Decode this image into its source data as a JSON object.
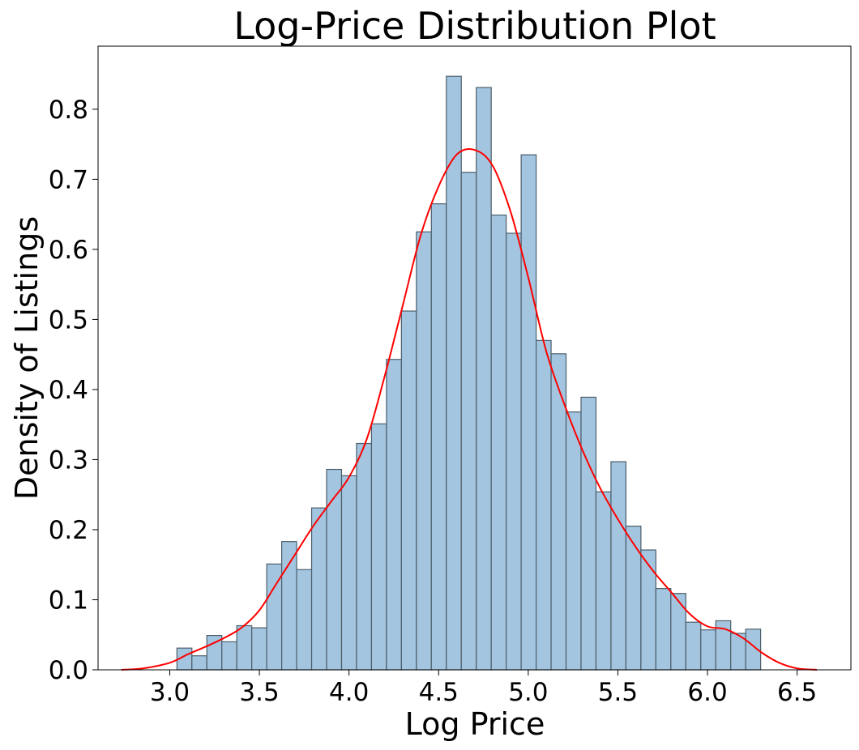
{
  "chart_data": {
    "type": "bar",
    "title": "Log-Price Distribution Plot",
    "xlabel": "Log Price",
    "ylabel": "Density of Listings",
    "xlim": [
      2.6,
      6.8
    ],
    "ylim": [
      0.0,
      0.89
    ],
    "xticks": [
      "3.0",
      "3.5",
      "4.0",
      "4.5",
      "5.0",
      "5.5",
      "6.0",
      "6.5"
    ],
    "yticks": [
      "0.0",
      "0.1",
      "0.2",
      "0.3",
      "0.4",
      "0.5",
      "0.6",
      "0.7",
      "0.8"
    ],
    "grid": false,
    "histogram": {
      "bin_start": 3.04,
      "bin_width": 0.0835,
      "values": [
        0.031,
        0.02,
        0.049,
        0.04,
        0.063,
        0.06,
        0.151,
        0.183,
        0.143,
        0.231,
        0.286,
        0.277,
        0.323,
        0.351,
        0.443,
        0.512,
        0.625,
        0.665,
        0.847,
        0.71,
        0.831,
        0.649,
        0.623,
        0.735,
        0.47,
        0.451,
        0.368,
        0.389,
        0.254,
        0.297,
        0.205,
        0.171,
        0.116,
        0.109,
        0.068,
        0.057,
        0.07,
        0.052,
        0.058
      ],
      "fill_color": "#a3c5df",
      "edge_color": "#4d5e6b"
    },
    "kde": {
      "color": "#ff0000",
      "x": [
        2.73,
        2.85,
        3.0,
        3.1,
        3.2,
        3.3,
        3.4,
        3.5,
        3.6,
        3.7,
        3.8,
        3.9,
        4.0,
        4.1,
        4.2,
        4.3,
        4.4,
        4.5,
        4.6,
        4.7,
        4.8,
        4.9,
        5.0,
        5.1,
        5.2,
        5.3,
        5.4,
        5.5,
        5.6,
        5.7,
        5.8,
        5.9,
        6.0,
        6.1,
        6.2,
        6.3,
        6.4,
        6.5,
        6.61
      ],
      "y": [
        0.0,
        0.002,
        0.01,
        0.022,
        0.033,
        0.045,
        0.06,
        0.085,
        0.125,
        0.165,
        0.205,
        0.24,
        0.275,
        0.33,
        0.42,
        0.52,
        0.62,
        0.69,
        0.735,
        0.742,
        0.72,
        0.655,
        0.56,
        0.455,
        0.38,
        0.315,
        0.26,
        0.215,
        0.175,
        0.14,
        0.11,
        0.08,
        0.062,
        0.058,
        0.045,
        0.025,
        0.01,
        0.002,
        0.0
      ]
    }
  }
}
